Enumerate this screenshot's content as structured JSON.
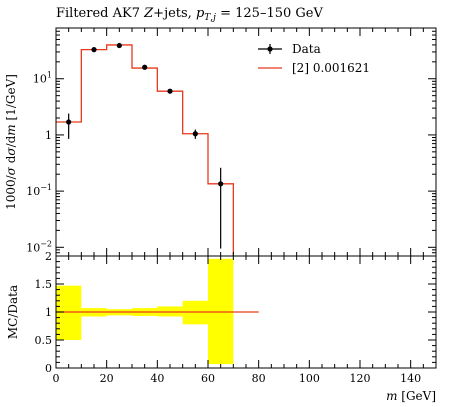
{
  "chart_data": [
    {
      "type": "line",
      "title": "Filtered AK7 Z+jets, pT,j = 125–150 GeV",
      "title_parts": {
        "prefix": "Filtered AK7 ",
        "z": "Z",
        "suffix": "+jets, ",
        "p": "p",
        "sub_t": "T",
        "sub_j": "j",
        "range": " = 125–150 GeV"
      },
      "ylabel": "1000/σ dσ/dm [1/GeV]",
      "ylabel_parts": {
        "a": "1000/",
        "sigma1": "σ",
        "b": " d",
        "sigma2": "σ",
        "c": "/d",
        "m": "m",
        "d": " [1/GeV]"
      },
      "yscale": "log",
      "ylim": [
        0.007,
        80
      ],
      "xlim": [
        0,
        150
      ],
      "yticks": [
        {
          "value": 0.01,
          "base": "10",
          "exp": "−2"
        },
        {
          "value": 0.1,
          "base": "10",
          "exp": "−1"
        },
        {
          "value": 1,
          "base": "1",
          "exp": ""
        },
        {
          "value": 10,
          "base": "10",
          "exp": "1"
        }
      ],
      "legend_position": "top-right",
      "series": [
        {
          "name": "Data",
          "kind": "points-with-errors",
          "color": "#000000",
          "points": [
            {
              "x": 5,
              "y": 1.7,
              "ylo": 0.85,
              "yhi": 2.4
            },
            {
              "x": 15,
              "y": 33,
              "ylo": 31,
              "yhi": 35
            },
            {
              "x": 25,
              "y": 39,
              "ylo": 37,
              "yhi": 41
            },
            {
              "x": 35,
              "y": 16,
              "ylo": 15,
              "yhi": 17
            },
            {
              "x": 45,
              "y": 6,
              "ylo": 5.6,
              "yhi": 6.4
            },
            {
              "x": 55,
              "y": 1.05,
              "ylo": 0.85,
              "yhi": 1.25
            },
            {
              "x": 65,
              "y": 0.135,
              "ylo": 0.0095,
              "yhi": 0.26
            }
          ]
        },
        {
          "name": "[2] 0.001621",
          "kind": "histogram",
          "color": "#e8391d",
          "bins": [
            {
              "x0": 0,
              "x1": 10,
              "y": 1.7
            },
            {
              "x0": 10,
              "x1": 20,
              "y": 33
            },
            {
              "x0": 20,
              "x1": 30,
              "y": 40
            },
            {
              "x0": 30,
              "x1": 40,
              "y": 15.5
            },
            {
              "x0": 40,
              "x1": 50,
              "y": 6
            },
            {
              "x0": 50,
              "x1": 60,
              "y": 1.05
            },
            {
              "x0": 60,
              "x1": 70,
              "y": 0.135
            }
          ],
          "drop_to_bottom_at": 70
        }
      ]
    },
    {
      "type": "line",
      "ylabel": "MC/Data",
      "xlabel": "m [GeV]",
      "xlabel_parts": {
        "m": "m",
        "unit": " [GeV]"
      },
      "xlim": [
        0,
        150
      ],
      "ylim": [
        0,
        2
      ],
      "yticks": [
        0,
        0.5,
        1,
        1.5,
        2
      ],
      "ytick_labels": [
        "0",
        "0.5",
        "1",
        "1.5",
        "2"
      ],
      "xticks": [
        0,
        20,
        40,
        60,
        80,
        100,
        120,
        140
      ],
      "xtick_labels": [
        "0",
        "20",
        "40",
        "60",
        "80",
        "100",
        "120",
        "140"
      ],
      "band_color": "#ffff00",
      "bands": [
        {
          "x0": 0,
          "x1": 10,
          "lo": 0.5,
          "hi": 1.47
        },
        {
          "x0": 10,
          "x1": 20,
          "lo": 0.92,
          "hi": 1.07
        },
        {
          "x0": 20,
          "x1": 30,
          "lo": 0.94,
          "hi": 1.05
        },
        {
          "x0": 30,
          "x1": 40,
          "lo": 0.93,
          "hi": 1.07
        },
        {
          "x0": 40,
          "x1": 50,
          "lo": 0.92,
          "hi": 1.1
        },
        {
          "x0": 50,
          "x1": 60,
          "lo": 0.78,
          "hi": 1.2
        },
        {
          "x0": 60,
          "x1": 70,
          "lo": 0.07,
          "hi": 1.95
        }
      ],
      "ratio_line": {
        "x0": 0,
        "x1": 80,
        "y": 1,
        "color": "#e8391d"
      }
    }
  ]
}
